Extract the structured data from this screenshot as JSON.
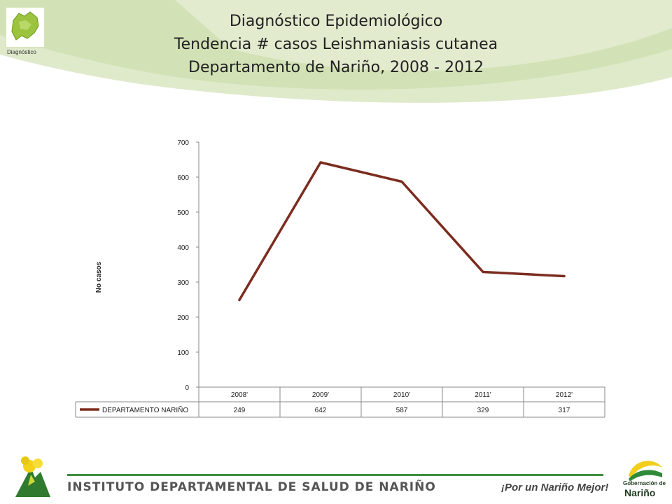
{
  "header": {
    "logo_caption": "Diagnóstico",
    "title_line1": "Diagnóstico Epidemiológico",
    "title_line2": "Tendencia # casos Leishmaniasis  cutanea",
    "title_line3": "Departamento de Nariño,   2008 - 2012"
  },
  "chart_data": {
    "type": "line",
    "categories": [
      "2008'",
      "2009'",
      "2010'",
      "2011'",
      "2012'"
    ],
    "series": [
      {
        "name": "DEPARTAMENTO NARIÑO",
        "values": [
          249,
          642,
          587,
          329,
          317
        ],
        "color": "#7b2c1f"
      }
    ],
    "ylabel": "No casos",
    "ylim": [
      0,
      700
    ],
    "yticks": [
      0,
      100,
      200,
      300,
      400,
      500,
      600,
      700
    ],
    "legend": "data-table-bottom",
    "grid": false
  },
  "footer": {
    "institute": "INSTITUTO DEPARTAMENTAL DE SALUD DE NARIÑO",
    "slogan": "¡Por un Nariño Mejor!",
    "gob_line1": "Gobernación de",
    "gob_line2": "Nariño"
  },
  "colors": {
    "accent_green": "#3f8f3f",
    "swoosh": "#c9dca8",
    "series": "#7b2c1f"
  }
}
